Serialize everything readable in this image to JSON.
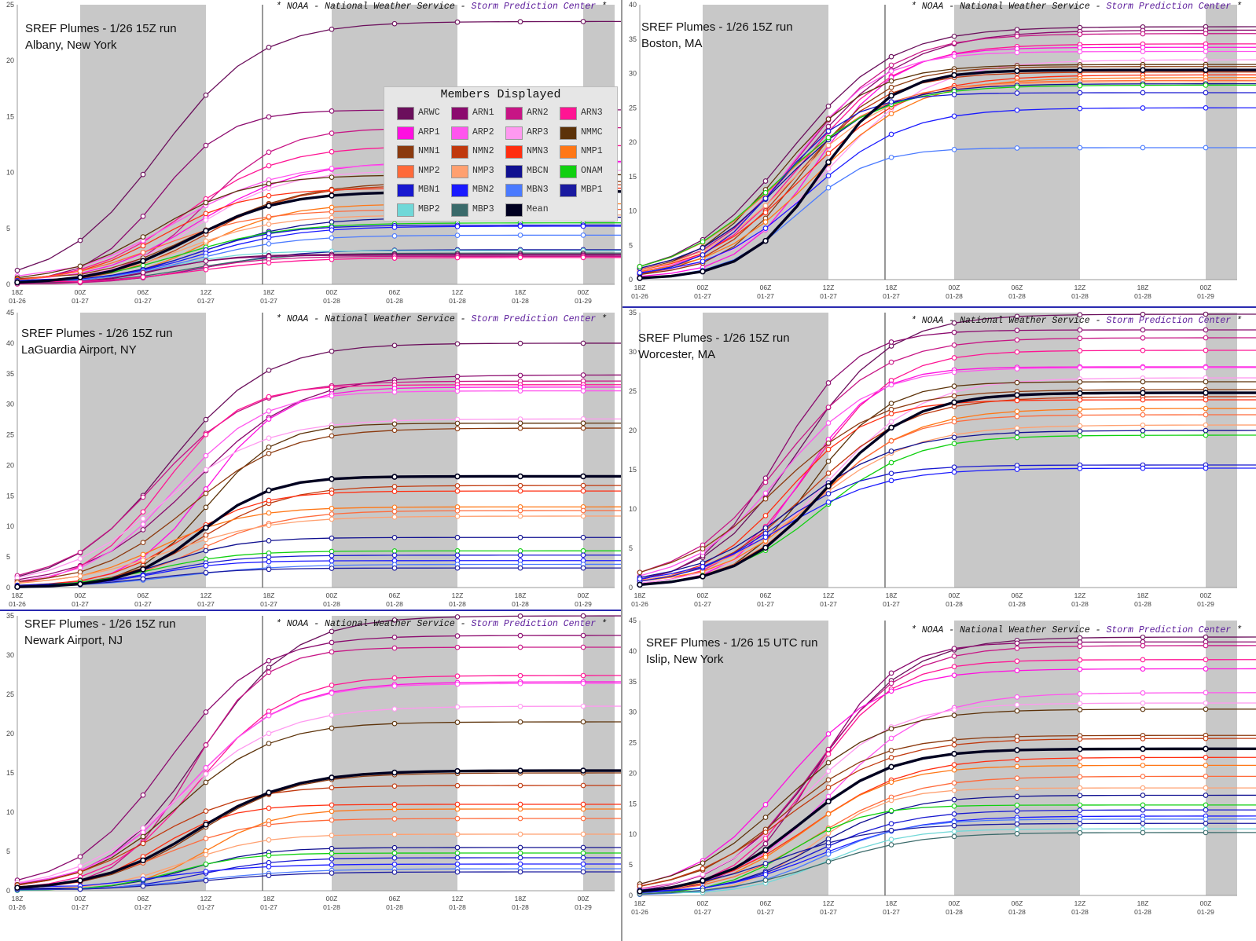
{
  "chart_data": [
    {
      "type": "line",
      "title": "SREF Plumes - 1/26 15Z run",
      "location": "Albany, New York",
      "banner": {
        "star": "*",
        "noaa": "NOAA",
        "dash": "-",
        "nws": "National Weather Service",
        "spc": "Storm Prediction Center"
      },
      "x_ticks": [
        [
          "18Z",
          "01-26"
        ],
        [
          "00Z",
          "01-27"
        ],
        [
          "06Z",
          "01-27"
        ],
        [
          "12Z",
          "01-27"
        ],
        [
          "18Z",
          "01-27"
        ],
        [
          "00Z",
          "01-28"
        ],
        [
          "06Z",
          "01-28"
        ],
        [
          "12Z",
          "01-28"
        ],
        [
          "18Z",
          "01-28"
        ],
        [
          "00Z",
          "01-29"
        ]
      ],
      "ylim": [
        0,
        25
      ],
      "y_ticks": [
        0,
        5,
        10,
        15,
        20,
        25
      ],
      "shaded_periods": [
        [
          1,
          3
        ],
        [
          5,
          7
        ],
        [
          9,
          9.5
        ]
      ],
      "current_time_index": 3.9,
      "mean_final": 8.3,
      "member_finals": [
        23.5,
        15.6,
        14.0,
        12.4,
        11.0,
        10.9,
        10.2,
        9.8,
        9.2,
        8.9,
        8.6,
        7.2,
        6.7,
        6.2,
        6.0,
        5.5,
        5.3,
        5.2,
        4.4,
        3.1,
        3.0,
        2.8,
        2.7,
        2.6,
        2.5,
        2.4
      ],
      "legend": {
        "title": "Members Displayed",
        "items": [
          {
            "label": "ARWC",
            "color": "#6b0f5c"
          },
          {
            "label": "ARN1",
            "color": "#8b0a6e"
          },
          {
            "label": "ARN2",
            "color": "#c71585"
          },
          {
            "label": "ARN3",
            "color": "#ff1493"
          },
          {
            "label": "ARP1",
            "color": "#ff10e0"
          },
          {
            "label": "ARP2",
            "color": "#ff55ee"
          },
          {
            "label": "ARP3",
            "color": "#ff99f0"
          },
          {
            "label": "NMMC",
            "color": "#5c3209"
          },
          {
            "label": "NMN1",
            "color": "#8b3a0f"
          },
          {
            "label": "NMN2",
            "color": "#c0390e"
          },
          {
            "label": "NMN3",
            "color": "#ff2e10"
          },
          {
            "label": "NMP1",
            "color": "#ff7716"
          },
          {
            "label": "NMP2",
            "color": "#ff6a3a"
          },
          {
            "label": "NMP3",
            "color": "#ffa070"
          },
          {
            "label": "MBCN",
            "color": "#101090"
          },
          {
            "label": "ONAM",
            "color": "#10d010"
          },
          {
            "label": "MBN1",
            "color": "#1818d0"
          },
          {
            "label": "MBN2",
            "color": "#1a1aff"
          },
          {
            "label": "MBN3",
            "color": "#4a7aff"
          },
          {
            "label": "MBP1",
            "color": "#1a1aa0"
          },
          {
            "label": "MBP2",
            "color": "#70d8d8"
          },
          {
            "label": "MBP3",
            "color": "#3a6a6a"
          },
          {
            "label": "Mean",
            "color": "#000020"
          }
        ]
      }
    },
    {
      "type": "line",
      "title": "SREF Plumes - 1/26 15Z run",
      "location": "Boston, MA",
      "banner": {
        "star": "*",
        "noaa": "NOAA",
        "dash": "-",
        "nws": "National Weather Service",
        "spc": "Storm Prediction Center"
      },
      "x_ticks": [
        [
          "18Z",
          "01-26"
        ],
        [
          "00Z",
          "01-27"
        ],
        [
          "06Z",
          "01-27"
        ],
        [
          "12Z",
          "01-27"
        ],
        [
          "18Z",
          "01-27"
        ],
        [
          "00Z",
          "01-28"
        ],
        [
          "06Z",
          "01-28"
        ],
        [
          "12Z",
          "01-28"
        ],
        [
          "18Z",
          "01-28"
        ],
        [
          "00Z",
          "01-29"
        ]
      ],
      "ylim": [
        0,
        40
      ],
      "y_ticks": [
        0,
        5,
        10,
        15,
        20,
        25,
        30,
        35,
        40
      ],
      "shaded_periods": [
        [
          1,
          3
        ],
        [
          5,
          7
        ],
        [
          9,
          9.5
        ]
      ],
      "current_time_index": 3.9,
      "mean_final": 30.5,
      "member_finals": [
        36.8,
        36.3,
        35.8,
        34.3,
        33.8,
        33.2,
        32.0,
        31.3,
        31.0,
        30.2,
        29.8,
        29.4,
        29.0,
        28.8,
        28.5,
        28.3,
        27.2,
        25.0,
        19.2
      ]
    },
    {
      "type": "line",
      "title": "SREF Plumes - 1/26 15Z run",
      "location": "LaGuardia Airport, NY",
      "banner": {
        "star": "*",
        "noaa": "NOAA",
        "dash": "-",
        "nws": "National Weather Service",
        "spc": "Storm Prediction Center"
      },
      "x_ticks": [
        [
          "18Z",
          "01-26"
        ],
        [
          "00Z",
          "01-27"
        ],
        [
          "06Z",
          "01-27"
        ],
        [
          "12Z",
          "01-27"
        ],
        [
          "18Z",
          "01-27"
        ],
        [
          "00Z",
          "01-28"
        ],
        [
          "06Z",
          "01-28"
        ],
        [
          "12Z",
          "01-28"
        ],
        [
          "18Z",
          "01-28"
        ],
        [
          "00Z",
          "01-29"
        ]
      ],
      "ylim": [
        0,
        45
      ],
      "y_ticks": [
        0,
        5,
        10,
        15,
        20,
        25,
        30,
        35,
        40,
        45
      ],
      "shaded_periods": [
        [
          1,
          3
        ],
        [
          5,
          7
        ],
        [
          9,
          9.5
        ]
      ],
      "current_time_index": 3.9,
      "mean_final": 18.2,
      "member_finals": [
        40.0,
        34.8,
        33.8,
        33.2,
        32.8,
        32.2,
        27.6,
        26.9,
        26.1,
        16.7,
        15.8,
        13.2,
        12.6,
        11.7,
        8.2,
        6.0,
        5.3,
        4.4,
        3.8,
        3.2
      ]
    },
    {
      "type": "line",
      "title": "SREF Plumes - 1/26 15Z run",
      "location": "Worcester, MA",
      "banner": {
        "star": "*",
        "noaa": "NOAA",
        "dash": "-",
        "nws": "National Weather Service",
        "spc": "Storm Prediction Center"
      },
      "x_ticks": [
        [
          "18Z",
          "01-26"
        ],
        [
          "00Z",
          "01-27"
        ],
        [
          "06Z",
          "01-27"
        ],
        [
          "12Z",
          "01-27"
        ],
        [
          "18Z",
          "01-27"
        ],
        [
          "00Z",
          "01-28"
        ],
        [
          "06Z",
          "01-28"
        ],
        [
          "12Z",
          "01-28"
        ],
        [
          "18Z",
          "01-28"
        ],
        [
          "00Z",
          "01-29"
        ]
      ],
      "ylim": [
        0,
        35
      ],
      "y_ticks": [
        0,
        5,
        10,
        15,
        20,
        25,
        30,
        35
      ],
      "shaded_periods": [
        [
          1,
          3
        ],
        [
          5,
          7
        ],
        [
          9,
          9.5
        ]
      ],
      "current_time_index": 3.9,
      "mean_final": 24.8,
      "member_finals": [
        34.8,
        32.8,
        31.8,
        30.2,
        28.1,
        28.0,
        26.7,
        26.2,
        25.2,
        24.3,
        23.9,
        22.8,
        22.0,
        20.7,
        20.0,
        19.4,
        15.6,
        15.2
      ]
    },
    {
      "type": "line",
      "title": "SREF Plumes - 1/26 15Z run",
      "location": "Newark Airport, NJ",
      "banner": {
        "star": "*",
        "noaa": "NOAA",
        "dash": "-",
        "nws": "National Weather Service",
        "spc": "Storm Prediction Center"
      },
      "x_ticks": [
        [
          "18Z",
          "01-26"
        ],
        [
          "00Z",
          "01-27"
        ],
        [
          "06Z",
          "01-27"
        ],
        [
          "12Z",
          "01-27"
        ],
        [
          "18Z",
          "01-27"
        ],
        [
          "00Z",
          "01-28"
        ],
        [
          "06Z",
          "01-28"
        ],
        [
          "12Z",
          "01-28"
        ],
        [
          "18Z",
          "01-28"
        ],
        [
          "00Z",
          "01-29"
        ]
      ],
      "ylim": [
        0,
        35
      ],
      "y_ticks": [
        0,
        5,
        10,
        15,
        20,
        25,
        30,
        35
      ],
      "shaded_periods": [
        [
          1,
          3
        ],
        [
          5,
          7
        ],
        [
          9,
          9.5
        ]
      ],
      "current_time_index": 3.9,
      "mean_final": 15.3,
      "member_finals": [
        35.0,
        32.5,
        31.0,
        27.4,
        26.6,
        26.4,
        23.5,
        21.5,
        15.0,
        13.4,
        11.0,
        10.4,
        9.2,
        7.2,
        5.5,
        4.8,
        4.2,
        3.4,
        2.8,
        2.4
      ]
    },
    {
      "type": "line",
      "title": "SREF Plumes - 1/26 15 UTC run",
      "location": "Islip, New York",
      "banner": {
        "star": "*",
        "noaa": "NOAA",
        "dash": "-",
        "nws": "National Weather Service",
        "spc": "Storm Prediction Center"
      },
      "x_ticks": [
        [
          "18Z",
          "01-26"
        ],
        [
          "00Z",
          "01-27"
        ],
        [
          "06Z",
          "01-27"
        ],
        [
          "12Z",
          "01-27"
        ],
        [
          "18Z",
          "01-27"
        ],
        [
          "00Z",
          "01-28"
        ],
        [
          "06Z",
          "01-28"
        ],
        [
          "12Z",
          "01-28"
        ],
        [
          "18Z",
          "01-28"
        ],
        [
          "00Z",
          "01-29"
        ]
      ],
      "ylim": [
        0,
        45
      ],
      "y_ticks": [
        0,
        5,
        10,
        15,
        20,
        25,
        30,
        35,
        40,
        45
      ],
      "shaded_periods": [
        [
          1,
          3
        ],
        [
          5,
          7
        ],
        [
          9,
          9.5
        ]
      ],
      "current_time_index": 3.9,
      "mean_final": 24.0,
      "member_finals": [
        42.3,
        41.5,
        40.9,
        38.6,
        37.1,
        33.2,
        31.5,
        30.5,
        26.2,
        25.7,
        22.6,
        21.3,
        19.5,
        17.6,
        16.4,
        14.8,
        14.0,
        13.0,
        12.5,
        11.8,
        10.9,
        10.3
      ]
    }
  ]
}
